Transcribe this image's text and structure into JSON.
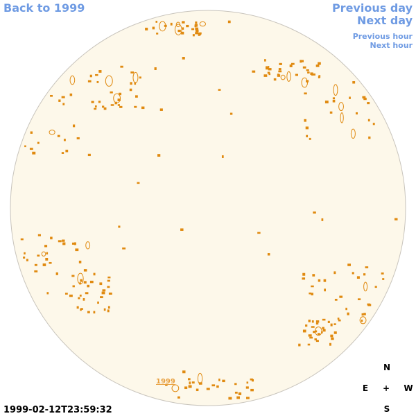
{
  "navigation": {
    "back_year": "Back to 1999",
    "previous_day": "Previous day",
    "next_day": "Next day",
    "previous_hour": "Previous hour",
    "next_hour": "Next hour"
  },
  "image": {
    "year_label": "1999",
    "timestamp": "1999-02-12T23:59:32"
  },
  "compass": {
    "north": "N",
    "east": "E",
    "center": "+",
    "west": "W",
    "south": "S"
  }
}
